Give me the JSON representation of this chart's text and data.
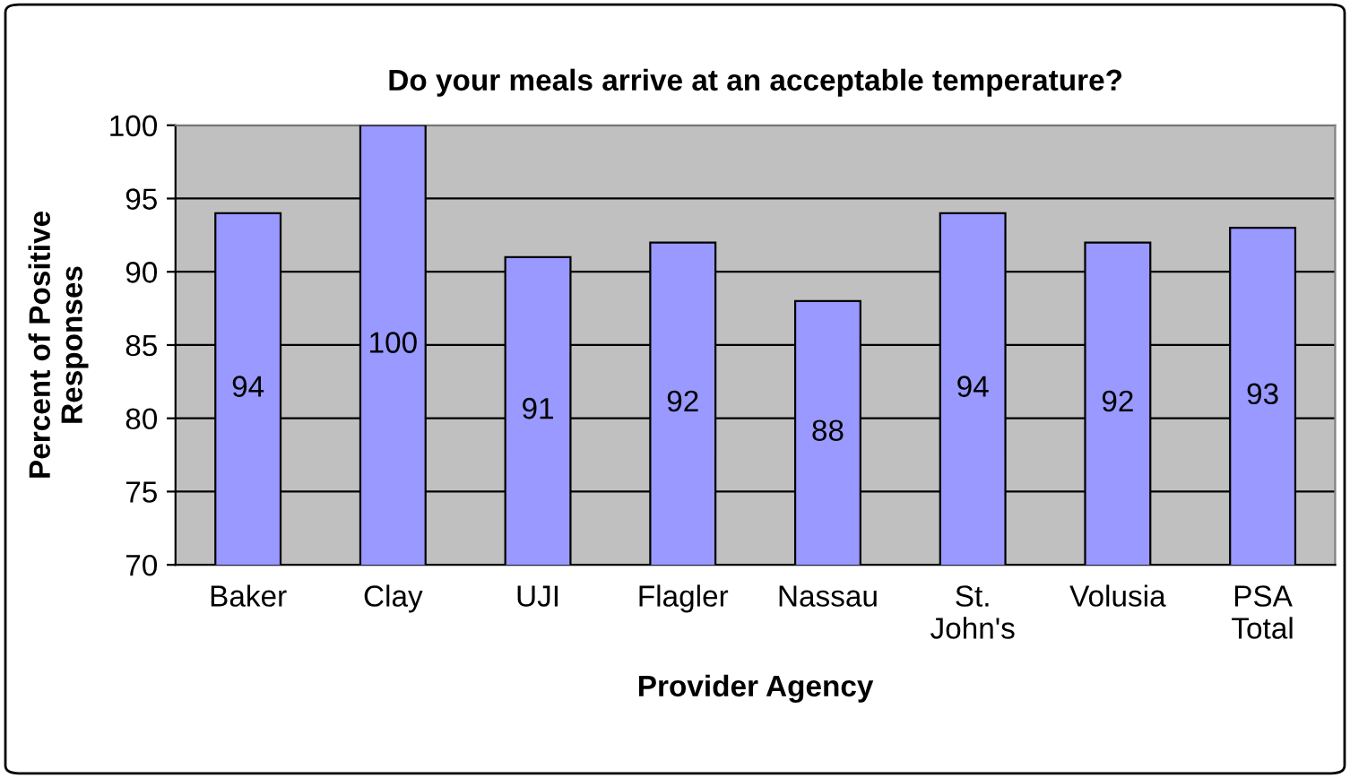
{
  "chart_data": {
    "type": "bar",
    "title": "Do your meals arrive at an acceptable temperature?",
    "xlabel": "Provider Agency",
    "ylabel": "Percent of Positive\nResponses",
    "categories": [
      "Baker",
      "Clay",
      "UJI",
      "Flagler",
      "Nassau",
      "St.\nJohn's",
      "Volusia",
      "PSA\nTotal"
    ],
    "values": [
      94,
      100,
      91,
      92,
      88,
      94,
      92,
      93
    ],
    "color": "#9999ff",
    "ylim": [
      70,
      100
    ],
    "yticks": [
      70,
      75,
      80,
      85,
      90,
      95,
      100
    ],
    "grid": "y",
    "data_labels": true
  }
}
